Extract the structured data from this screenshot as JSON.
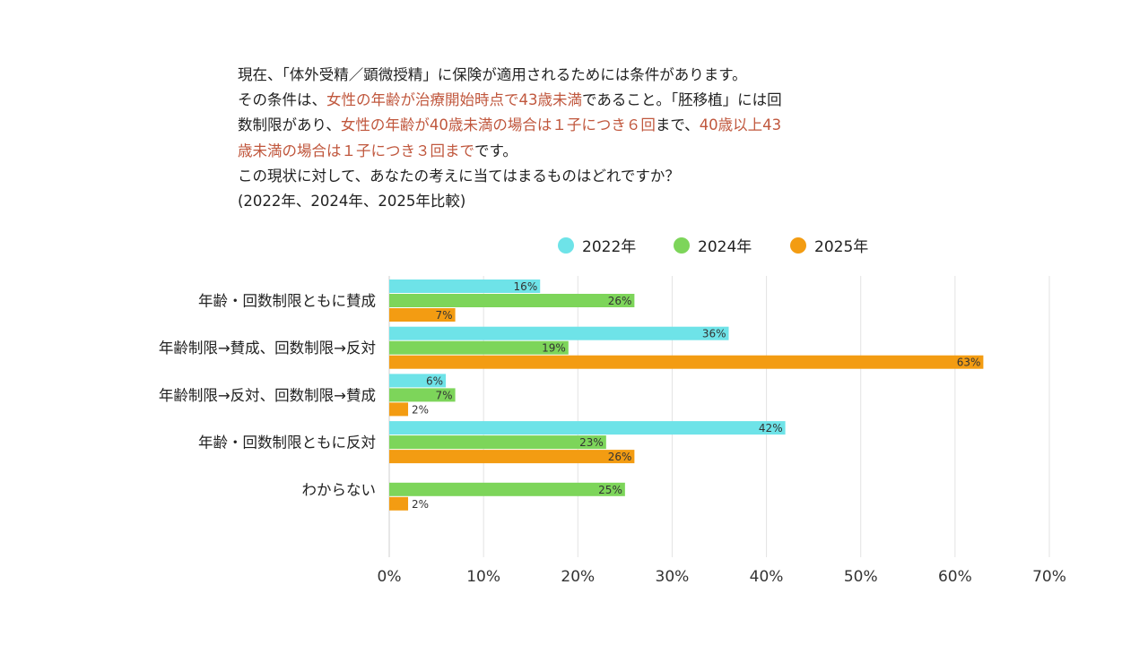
{
  "question": {
    "lines": [
      [
        {
          "text": "現在、「体外受精／顕微授精」に保険が適用されるためには条件があります。",
          "hl": false
        }
      ],
      [
        {
          "text": "その条件は、",
          "hl": false
        },
        {
          "text": "女性の年齢が治療開始時点で43歳未満",
          "hl": true
        },
        {
          "text": "であること。「胚移植」には回",
          "hl": false
        }
      ],
      [
        {
          "text": "数制限があり、",
          "hl": false
        },
        {
          "text": "女性の年齢が40歳未満の場合は１子につき６回",
          "hl": true
        },
        {
          "text": "まで、",
          "hl": false
        },
        {
          "text": "40歳以上43",
          "hl": true
        }
      ],
      [
        {
          "text": "歳未満の場合は１子につき３回まで",
          "hl": true
        },
        {
          "text": "です。",
          "hl": false
        }
      ],
      [
        {
          "text": "この現状に対して、あなたの考えに当てはまるものはどれですか？",
          "hl": false
        }
      ],
      [
        {
          "text": "(2022年、2024年、2025年比較)",
          "hl": false
        }
      ]
    ],
    "highlight_color": "#c0573d"
  },
  "chart_data": {
    "type": "bar",
    "orientation": "horizontal",
    "categories": [
      "年齢・回数制限ともに賛成",
      "年齢制限→賛成、回数制限→反対",
      "年齢制限→反対、回数制限→賛成",
      "年齢・回数制限ともに反対",
      "わからない"
    ],
    "series": [
      {
        "name": "2022年",
        "color": "#6ee3e8",
        "values": [
          16,
          36,
          6,
          42,
          null
        ]
      },
      {
        "name": "2024年",
        "color": "#7dd55a",
        "values": [
          26,
          19,
          7,
          23,
          25
        ]
      },
      {
        "name": "2025年",
        "color": "#f39c12",
        "values": [
          7,
          63,
          2,
          26,
          2
        ]
      }
    ],
    "xlim": [
      0,
      70
    ],
    "xticks": [
      "0%",
      "10%",
      "20%",
      "30%",
      "40%",
      "50%",
      "60%",
      "70%"
    ],
    "value_suffix": "%",
    "grid": true,
    "legend_position": "top"
  }
}
